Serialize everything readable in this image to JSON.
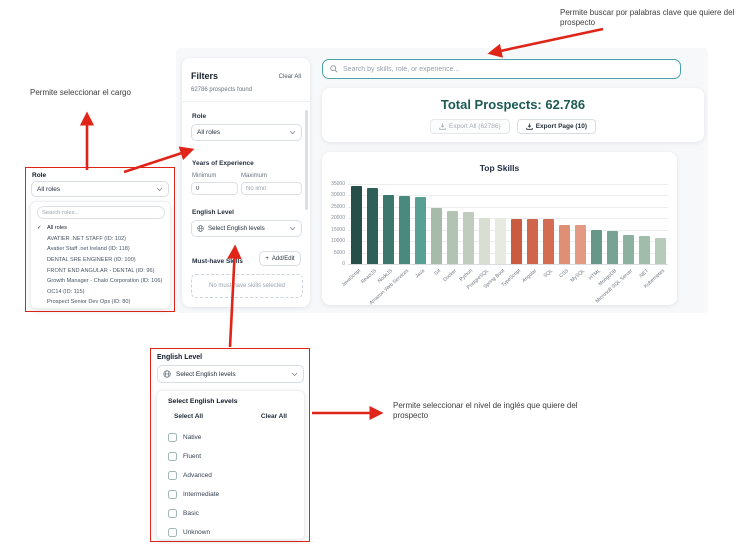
{
  "accent_red": "#e02418",
  "accent_teal": "#4aa2a8",
  "annotations": {
    "search_note": "Permite buscar por palabras clave que quiere del prospecto",
    "role_note": "Permite seleccionar el cargo",
    "english_note": "Permite seleccionar el nivel de inglés que quiere del prospecto"
  },
  "filters": {
    "title": "Filters",
    "clear_all": "Clear All",
    "results_count": "62786 prospects found",
    "role_label": "Role",
    "role_value": "All roles",
    "experience_label": "Years of Experience",
    "min_label": "Minimum",
    "max_label": "Maximum",
    "min_value": "0",
    "max_placeholder": "No limit",
    "english_label": "English Level",
    "english_value": "Select English levels",
    "skills_label": "Must-have Skills",
    "add_edit_label": "Add/Edit",
    "plus_glyph": "+",
    "no_skills": "No must-have skills selected"
  },
  "search": {
    "placeholder": "Search by skills, role, or experience..."
  },
  "summary": {
    "total": "Total Prospects: 62.786",
    "export_all": "Export All (62786)",
    "export_page": "Export Page (10)"
  },
  "role_popup": {
    "label": "Role",
    "value": "All roles",
    "search_placeholder": "Search roles...",
    "check_glyph": "✓",
    "items": [
      {
        "label": "All roles",
        "selected": true
      },
      {
        "label": "AVATIER .NET STAFF (ID: 102)",
        "selected": false
      },
      {
        "label": "Avatier Staff .net Ireland (ID: 118)",
        "selected": false
      },
      {
        "label": "DENTAL SRE ENGINEER (ID: 100)",
        "selected": false
      },
      {
        "label": "FRONT END ANGULAR - DENTAL (ID: 96)",
        "selected": false
      },
      {
        "label": "Growth Manager - Chalo Corporation (ID: 106)",
        "selected": false
      },
      {
        "label": "OC14 (ID: 115)",
        "selected": false
      },
      {
        "label": "Prospect Senior Dev Ops (ID: 80)",
        "selected": false
      }
    ]
  },
  "english_popup": {
    "label": "English Level",
    "value": "Select English levels",
    "panel_title": "Select English Levels",
    "select_all": "Select All",
    "clear_all": "Clear All",
    "options": [
      "Native",
      "Fluent",
      "Advanced",
      "Intermediate",
      "Basic",
      "Unknown"
    ]
  },
  "chart_data": {
    "type": "bar",
    "title": "Top Skills",
    "categories": [
      "JavaScript",
      "ReactJS",
      "NodeJS",
      "Amazon Web Services",
      "Java",
      "Git",
      "Docker",
      "Python",
      "PostgreSQL",
      "Spring Boot",
      "TypeScript",
      "Angular",
      "SQL",
      "CSS",
      "MySQL",
      "HTML",
      "MongoDB",
      "Microsoft SQL Server",
      ".NET",
      "Kubernetes"
    ],
    "values": [
      34300,
      33200,
      30100,
      29800,
      29400,
      24600,
      23100,
      22700,
      20100,
      20000,
      19900,
      19800,
      19700,
      17200,
      17100,
      15100,
      14600,
      12900,
      12300,
      11200
    ],
    "colors": [
      "#264f49",
      "#2e5f58",
      "#3d766c",
      "#4a8a7e",
      "#58a094",
      "#a6bba9",
      "#b3c3b3",
      "#c0ccbe",
      "#d8dfd2",
      "#e6eae0",
      "#c95b40",
      "#cf654b",
      "#d26c53",
      "#e08f77",
      "#e49983",
      "#68978a",
      "#78a294",
      "#8db1a0",
      "#a0bdac",
      "#b7cbba"
    ],
    "xlabel": "",
    "ylabel": "",
    "ylim": [
      0,
      35000
    ],
    "yticks": [
      0,
      5000,
      10000,
      15000,
      20000,
      25000,
      30000,
      35000
    ],
    "grid": true,
    "legend": false
  }
}
